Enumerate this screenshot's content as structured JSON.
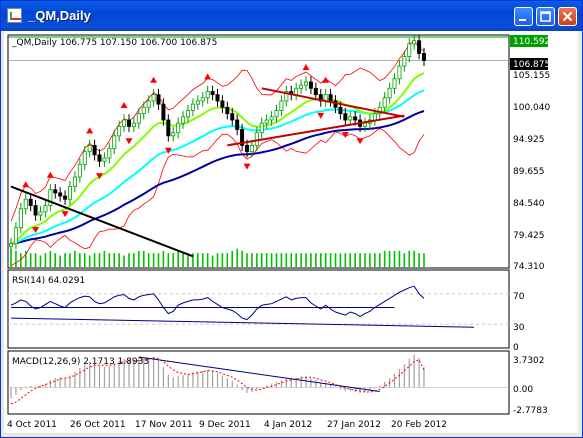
{
  "window": {
    "title": "_QM,Daily"
  },
  "price_panel": {
    "label": "_QM,Daily  106.775 107.150 106.700 106.875",
    "current_price": "106.875",
    "high_marker": "110.592",
    "scale": [
      "105.155",
      "100.040",
      "94.925",
      "89.655",
      "84.540",
      "79.425",
      "74.310"
    ]
  },
  "rsi_panel": {
    "label": "RSI(14) 64.0291",
    "scale": [
      "70",
      "30",
      "0"
    ]
  },
  "macd_panel": {
    "label": "MACD(12,26,9) 2.1713 1.8933",
    "scale": [
      "3.7302",
      "0.00",
      "-2.7783"
    ]
  },
  "time_axis": [
    "4 Oct 2011",
    "26 Oct 2011",
    "17 Nov 2011",
    "9 Dec 2011",
    "4 Jan 2012",
    "27 Jan 2012",
    "20 Feb 2012"
  ],
  "colors": {
    "up": "#00a000",
    "down": "#000000",
    "rsi": "#000080",
    "macd_hist": "#a0a0a0",
    "macd_signal": "#ff0000",
    "ema_fast": "#80ff00",
    "ema_slow": "#00ffff",
    "sma_long": "#0000a0",
    "bands": "#ff0000",
    "fractal": "#ff0000",
    "trendline_red": "#c00000",
    "trendline_black": "#000000",
    "high_line": "#00a000"
  },
  "chart_data": {
    "type": "line",
    "price": [
      78.0,
      80.5,
      83.5,
      85.0,
      84.0,
      82.5,
      83.0,
      84.0,
      86.5,
      86.0,
      85.5,
      85.0,
      87.0,
      88.5,
      90.5,
      92.5,
      93.5,
      92.0,
      91.0,
      91.5,
      93.0,
      95.0,
      96.5,
      97.5,
      96.5,
      97.0,
      98.5,
      99.5,
      100.5,
      101.5,
      100.0,
      97.5,
      95.0,
      95.5,
      97.0,
      98.0,
      99.0,
      100.0,
      100.5,
      101.0,
      102.0,
      101.5,
      100.5,
      99.5,
      98.5,
      97.5,
      96.0,
      93.5,
      92.5,
      93.5,
      95.5,
      97.0,
      97.5,
      98.0,
      99.0,
      100.5,
      102.0,
      101.5,
      102.5,
      103.0,
      103.5,
      102.5,
      101.5,
      100.5,
      101.5,
      100.5,
      99.5,
      98.5,
      97.5,
      98.0,
      97.5,
      96.5,
      97.0,
      97.5,
      98.5,
      99.5,
      101.0,
      102.5,
      104.0,
      106.0,
      107.5,
      109.5,
      110.0,
      108.0,
      106.9
    ],
    "volume": [
      8,
      7,
      6,
      7,
      6,
      6,
      5,
      6,
      7,
      6,
      5,
      6,
      6,
      7,
      6,
      6,
      5,
      6,
      6,
      7,
      6,
      6,
      6,
      5,
      6,
      6,
      7,
      7,
      6,
      6,
      6,
      7,
      6,
      6,
      7,
      6,
      6,
      6,
      6,
      6,
      6,
      5,
      6,
      6,
      6,
      7,
      8,
      7,
      6,
      6,
      6,
      6,
      6,
      6,
      6,
      6,
      6,
      6,
      6,
      6,
      6,
      6,
      6,
      6,
      6,
      6,
      6,
      6,
      6,
      6,
      6,
      6,
      6,
      6,
      6,
      6,
      7,
      7,
      7,
      7,
      6,
      7,
      7,
      6,
      6
    ],
    "rsi": [
      55,
      58,
      62,
      60,
      54,
      50,
      52,
      56,
      60,
      57,
      54,
      52,
      58,
      62,
      65,
      67,
      66,
      60,
      57,
      58,
      62,
      66,
      68,
      69,
      64,
      62,
      66,
      68,
      69,
      70,
      62,
      52,
      44,
      47,
      55,
      58,
      60,
      62,
      62,
      63,
      65,
      60,
      56,
      52,
      50,
      48,
      44,
      38,
      36,
      42,
      50,
      55,
      56,
      57,
      60,
      63,
      66,
      62,
      64,
      65,
      65,
      58,
      54,
      50,
      55,
      50,
      46,
      44,
      42,
      46,
      44,
      40,
      44,
      47,
      52,
      56,
      60,
      64,
      68,
      72,
      75,
      78,
      80,
      70,
      64
    ],
    "macd_hist": [
      -1.2,
      -0.8,
      -0.3,
      0.1,
      0.2,
      0.1,
      0.2,
      0.4,
      0.8,
      1.0,
      1.1,
      1.0,
      1.3,
      1.7,
      2.1,
      2.5,
      2.8,
      2.6,
      2.3,
      2.2,
      2.3,
      2.6,
      2.9,
      3.1,
      3.0,
      2.9,
      3.0,
      3.1,
      3.2,
      3.3,
      2.9,
      2.2,
      1.4,
      1.1,
      1.2,
      1.3,
      1.4,
      1.6,
      1.7,
      1.8,
      1.9,
      1.8,
      1.6,
      1.3,
      1.0,
      0.7,
      0.3,
      -0.3,
      -0.6,
      -0.5,
      -0.2,
      0.0,
      0.2,
      0.4,
      0.6,
      0.8,
      1.0,
      1.0,
      1.1,
      1.2,
      1.2,
      1.0,
      0.8,
      0.5,
      0.5,
      0.3,
      0.1,
      -0.2,
      -0.4,
      -0.4,
      -0.5,
      -0.6,
      -0.5,
      -0.4,
      -0.1,
      0.2,
      0.6,
      1.0,
      1.5,
      2.0,
      2.5,
      3.1,
      3.6,
      3.2,
      2.2
    ],
    "macd_signal": [
      -1.8,
      -1.6,
      -1.2,
      -0.8,
      -0.4,
      -0.1,
      0.1,
      0.3,
      0.5,
      0.7,
      0.9,
      1.0,
      1.1,
      1.3,
      1.6,
      1.9,
      2.2,
      2.4,
      2.4,
      2.4,
      2.4,
      2.5,
      2.6,
      2.8,
      2.9,
      2.9,
      2.9,
      3.0,
      3.1,
      3.2,
      3.1,
      2.8,
      2.3,
      1.9,
      1.6,
      1.5,
      1.4,
      1.5,
      1.6,
      1.7,
      1.8,
      1.8,
      1.7,
      1.5,
      1.3,
      1.1,
      0.8,
      0.4,
      0.0,
      -0.2,
      -0.3,
      -0.2,
      0.0,
      0.1,
      0.3,
      0.5,
      0.7,
      0.8,
      0.9,
      1.0,
      1.1,
      1.1,
      1.0,
      0.8,
      0.7,
      0.5,
      0.3,
      0.1,
      -0.1,
      -0.2,
      -0.3,
      -0.4,
      -0.5,
      -0.5,
      -0.4,
      -0.2,
      0.1,
      0.5,
      0.9,
      1.3,
      1.8,
      2.3,
      2.8,
      3.0,
      1.9
    ],
    "ylim_price": [
      74.31,
      110.592
    ],
    "ylim_rsi": [
      0,
      100
    ],
    "ylim_macd": [
      -2.7783,
      3.7302
    ]
  }
}
